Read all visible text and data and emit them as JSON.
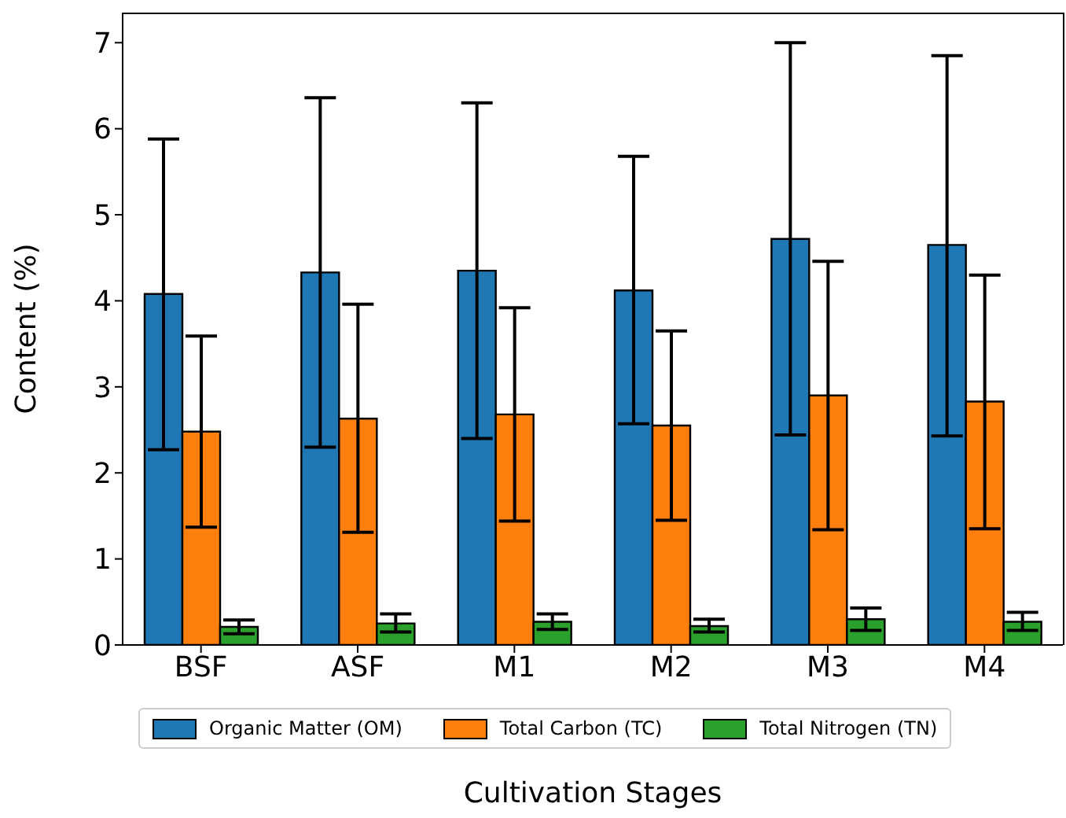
{
  "chart_data": {
    "type": "bar",
    "xlabel": "Cultivation Stages",
    "ylabel": "Content (%)",
    "categories": [
      "BSF",
      "ASF",
      "M1",
      "M2",
      "M3",
      "M4"
    ],
    "series": [
      {
        "name": "Organic Matter (OM)",
        "color": "#1f77b4",
        "values": [
          4.08,
          4.33,
          4.35,
          4.12,
          4.72,
          4.65
        ],
        "errors": [
          [
            2.27,
            5.88
          ],
          [
            2.3,
            6.36
          ],
          [
            2.4,
            6.3
          ],
          [
            2.57,
            5.68
          ],
          [
            2.44,
            7.0
          ],
          [
            2.43,
            6.85
          ]
        ]
      },
      {
        "name": "Total Carbon (TC)",
        "color": "#ff7f0e",
        "values": [
          2.48,
          2.63,
          2.68,
          2.55,
          2.9,
          2.83
        ],
        "errors": [
          [
            1.37,
            3.59
          ],
          [
            1.31,
            3.96
          ],
          [
            1.44,
            3.92
          ],
          [
            1.45,
            3.65
          ],
          [
            1.34,
            4.46
          ],
          [
            1.35,
            4.3
          ]
        ]
      },
      {
        "name": "Total Nitrogen (TN)",
        "color": "#2ca02c",
        "values": [
          0.21,
          0.25,
          0.27,
          0.22,
          0.3,
          0.27
        ],
        "errors": [
          [
            0.13,
            0.29
          ],
          [
            0.15,
            0.36
          ],
          [
            0.18,
            0.36
          ],
          [
            0.15,
            0.3
          ],
          [
            0.17,
            0.43
          ],
          [
            0.17,
            0.38
          ]
        ]
      }
    ],
    "ylim": [
      0,
      7.35
    ],
    "yticks": [
      0,
      1,
      2,
      3,
      4,
      5,
      6,
      7
    ],
    "grid": false,
    "legend": "bottom"
  }
}
